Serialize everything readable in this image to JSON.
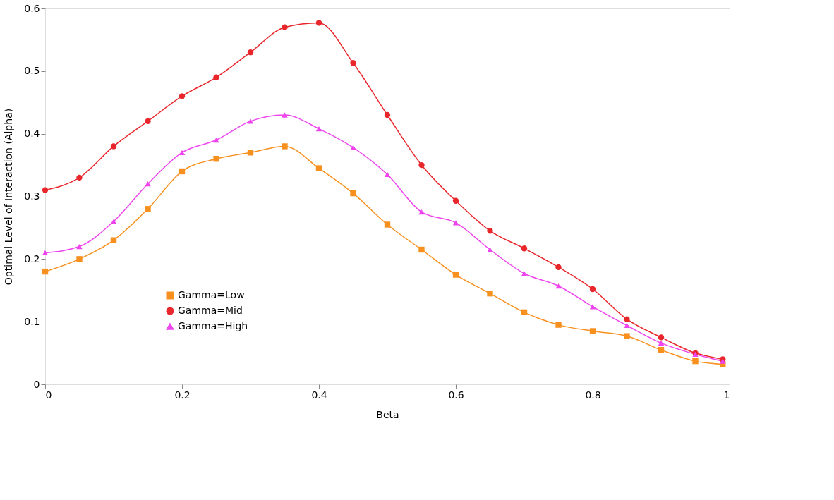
{
  "chart_data": {
    "type": "line",
    "xlabel": "Beta",
    "ylabel": "Optimal Level of Interaction (Alpha)",
    "x": [
      0,
      0.05,
      0.1,
      0.15,
      0.2,
      0.25,
      0.3,
      0.35,
      0.4,
      0.45,
      0.5,
      0.55,
      0.6,
      0.65,
      0.7,
      0.75,
      0.8,
      0.85,
      0.9,
      0.95,
      0.99
    ],
    "series": [
      {
        "name": "Gamma=Low",
        "color": "#f7901e",
        "marker": "square",
        "values": [
          0.18,
          0.2,
          0.23,
          0.28,
          0.34,
          0.36,
          0.37,
          0.38,
          0.345,
          0.305,
          0.255,
          0.215,
          0.175,
          0.145,
          0.115,
          0.095,
          0.085,
          0.077,
          0.055,
          0.037,
          0.032
        ]
      },
      {
        "name": "Gamma=Mid",
        "color": "#e8262b",
        "marker": "circle",
        "values": [
          0.31,
          0.33,
          0.38,
          0.42,
          0.46,
          0.49,
          0.53,
          0.57,
          0.577,
          0.513,
          0.43,
          0.35,
          0.293,
          0.245,
          0.217,
          0.187,
          0.152,
          0.104,
          0.075,
          0.05,
          0.04
        ]
      },
      {
        "name": "Gamma=High",
        "color": "#ee44ee",
        "marker": "triangle",
        "values": [
          0.21,
          0.22,
          0.26,
          0.32,
          0.37,
          0.39,
          0.42,
          0.43,
          0.408,
          0.378,
          0.335,
          0.275,
          0.258,
          0.215,
          0.177,
          0.157,
          0.124,
          0.094,
          0.066,
          0.048,
          0.037
        ]
      }
    ],
    "xlim": [
      0,
      1
    ],
    "xticks": [
      0,
      0.2,
      0.4,
      0.6,
      0.8,
      1
    ],
    "ylim": [
      0,
      0.6
    ],
    "yticks": [
      0,
      0.1,
      0.2,
      0.3,
      0.4,
      0.5,
      0.6
    ],
    "grid": false,
    "legend": "left",
    "line_style": "solid"
  }
}
